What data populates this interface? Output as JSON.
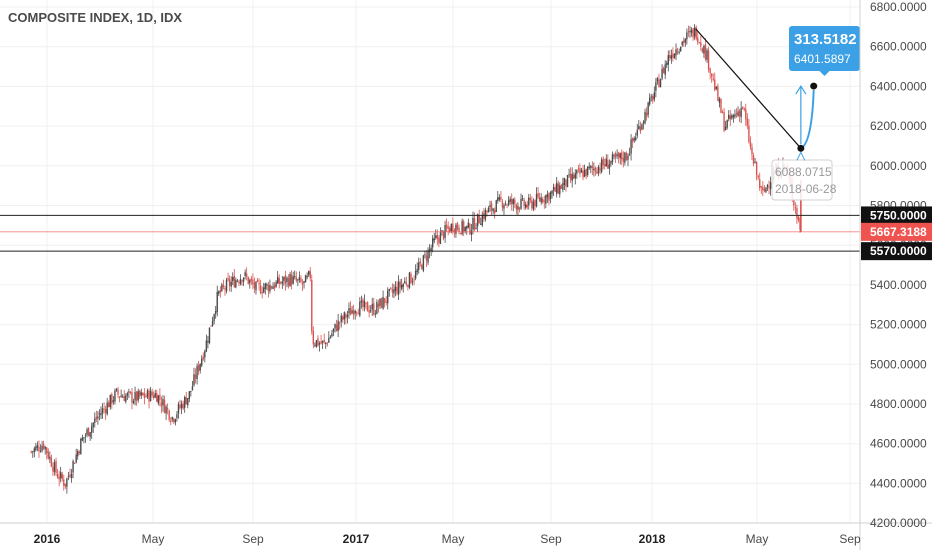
{
  "chart_data": {
    "type": "candlestick",
    "title": "COMPOSITE INDEX, 1D, IDX",
    "x_ticks": [
      {
        "label": "2016",
        "bold": true
      },
      {
        "label": "May",
        "bold": false
      },
      {
        "label": "Sep",
        "bold": false
      },
      {
        "label": "2017",
        "bold": true
      },
      {
        "label": "May",
        "bold": false
      },
      {
        "label": "Sep",
        "bold": false
      },
      {
        "label": "2018",
        "bold": true
      },
      {
        "label": "May",
        "bold": false
      },
      {
        "label": "Sep",
        "bold": false
      }
    ],
    "y_ticks": [
      "6800.0000",
      "6600.0000",
      "6400.0000",
      "6200.0000",
      "6000.0000",
      "5800.0000",
      "5600.0000",
      "5400.0000",
      "5200.0000",
      "5000.0000",
      "4800.0000",
      "4600.0000",
      "4400.0000",
      "4200.0000"
    ],
    "ylim": [
      4200,
      6800
    ],
    "price_path": [
      [
        "2015-12-14",
        4560
      ],
      [
        "2015-12-28",
        4600
      ],
      [
        "2016-01-12",
        4450
      ],
      [
        "2016-01-22",
        4400
      ],
      [
        "2016-02-10",
        4620
      ],
      [
        "2016-03-01",
        4750
      ],
      [
        "2016-03-20",
        4850
      ],
      [
        "2016-04-10",
        4830
      ],
      [
        "2016-05-05",
        4850
      ],
      [
        "2016-05-25",
        4730
      ],
      [
        "2016-06-15",
        4850
      ],
      [
        "2016-07-05",
        5100
      ],
      [
        "2016-07-20",
        5350
      ],
      [
        "2016-08-01",
        5400
      ],
      [
        "2016-08-20",
        5450
      ],
      [
        "2016-09-05",
        5380
      ],
      [
        "2016-09-25",
        5400
      ],
      [
        "2016-10-15",
        5430
      ],
      [
        "2016-10-31",
        5400
      ],
      [
        "2016-11-08",
        5450
      ],
      [
        "2016-11-10",
        5120
      ],
      [
        "2016-11-25",
        5100
      ],
      [
        "2016-12-10",
        5200
      ],
      [
        "2016-12-31",
        5290
      ],
      [
        "2017-01-25",
        5280
      ],
      [
        "2017-02-20",
        5380
      ],
      [
        "2017-03-15",
        5450
      ],
      [
        "2017-04-10",
        5630
      ],
      [
        "2017-05-01",
        5700
      ],
      [
        "2017-05-20",
        5680
      ],
      [
        "2017-06-10",
        5760
      ],
      [
        "2017-07-01",
        5820
      ],
      [
        "2017-08-01",
        5800
      ],
      [
        "2017-09-01",
        5860
      ],
      [
        "2017-10-01",
        5950
      ],
      [
        "2017-10-31",
        6000
      ],
      [
        "2017-12-01",
        6050
      ],
      [
        "2017-12-31",
        6330
      ],
      [
        "2018-01-20",
        6550
      ],
      [
        "2018-02-10",
        6650
      ],
      [
        "2018-02-20",
        6680
      ],
      [
        "2018-03-05",
        6550
      ],
      [
        "2018-03-25",
        6200
      ],
      [
        "2018-04-15",
        6300
      ],
      [
        "2018-04-25",
        6050
      ],
      [
        "2018-05-08",
        5850
      ],
      [
        "2018-05-20",
        5950
      ],
      [
        "2018-06-08",
        6000
      ],
      [
        "2018-06-28",
        5667
      ]
    ],
    "horizontal_levels": [
      {
        "value": 5750,
        "label": "5750.0000"
      },
      {
        "value": 5570,
        "label": "5570.0000"
      }
    ],
    "last_price": {
      "value": 5667.3188,
      "label": "5667.3188",
      "color": "#ef5350"
    },
    "trendline": {
      "from": [
        "2018-02-20",
        6690
      ],
      "to": [
        "2018-06-28",
        6088
      ]
    },
    "projection": {
      "from": [
        "2018-06-28",
        6088.0715
      ],
      "to": [
        "2018-07-15",
        6401.5897
      ],
      "change": "313.5182",
      "target": "6401.5897",
      "color": "#3ba0e6"
    },
    "ghost_label": {
      "value": "6088.0715",
      "date": "2018-06-28"
    },
    "colors": {
      "up": "#4a4a4a",
      "down": "#d9534f",
      "level": "#222222",
      "last": "#ef5350",
      "grid": "#f0f0f0"
    }
  }
}
